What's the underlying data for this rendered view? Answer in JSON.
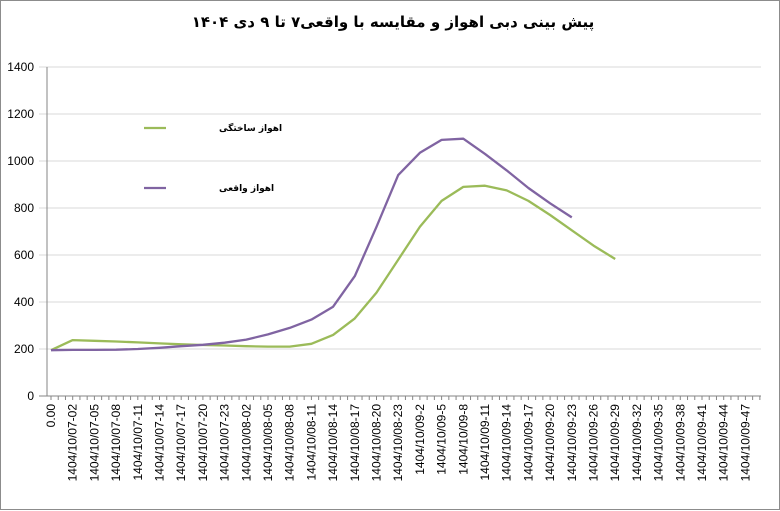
{
  "chart_data": {
    "type": "line",
    "title": "پیش بینی دبی اهواز و مقایسه با واقعی۷ تا ۹ دی ۱۴۰۴",
    "xlabel": "",
    "ylabel": "",
    "ylim": [
      0,
      1400
    ],
    "yticks": [
      "0",
      "200",
      "400",
      "600",
      "800",
      "1000",
      "1200",
      "1400"
    ],
    "grid": true,
    "legend_placement": "top-left",
    "categories": [
      "0.00",
      "1404/10/07-02",
      "1404/10/07-05",
      "1404/10/07-08",
      "1404/10/07-11",
      "1404/10/07-14",
      "1404/10/07-17",
      "1404/10/07-20",
      "1404/10/07-23",
      "1404/10/08-02",
      "1404/10/08-05",
      "1404/10/08-08",
      "1404/10/08-11",
      "1404/10/08-14",
      "1404/10/08-17",
      "1404/10/08-20",
      "1404/10/08-23",
      "1404/10/09-2",
      "1404/10/09-5",
      "1404/10/09-8",
      "1404/10/09-11",
      "1404/10/09-14",
      "1404/10/09-17",
      "1404/10/09-20",
      "1404/10/09-23",
      "1404/10/09-26",
      "1404/10/09-29",
      "1404/10/09-32",
      "1404/10/09-35",
      "1404/10/09-38",
      "1404/10/09-41",
      "1404/10/09-44",
      "1404/10/09-47"
    ],
    "series": [
      {
        "name": "اهواز ساختگی",
        "color": "#9bbb59",
        "values": [
          195,
          238,
          235,
          232,
          228,
          224,
          220,
          217,
          215,
          212,
          210,
          210,
          222,
          260,
          330,
          440,
          580,
          720,
          830,
          890,
          895,
          875,
          830,
          770,
          705,
          640,
          583,
          null,
          null,
          null,
          null,
          null,
          null
        ]
      },
      {
        "name": "اهواز واقعی",
        "color": "#8064a2",
        "values": [
          195,
          196,
          196,
          197,
          200,
          205,
          212,
          218,
          227,
          240,
          262,
          290,
          325,
          380,
          510,
          720,
          940,
          1035,
          1090,
          1095,
          1030,
          960,
          885,
          820,
          760,
          null,
          null,
          null,
          null,
          null,
          null,
          null,
          null
        ]
      }
    ]
  }
}
